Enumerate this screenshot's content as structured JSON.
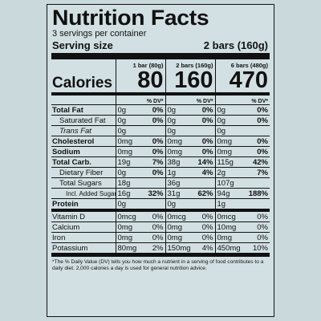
{
  "title": "Nutrition Facts",
  "servings_per_container": "3 servings per container",
  "serving_size_label": "Serving size",
  "serving_size_value": "2 bars (160g)",
  "columns": [
    "1 bar (80g)",
    "2 bars (160g)",
    "6 bars (480g)"
  ],
  "calories_label": "Calories",
  "calories": [
    "80",
    "160",
    "470"
  ],
  "dv_label": "% DV*",
  "nutrients": [
    {
      "name": "Total Fat",
      "style": "bold",
      "vals": [
        [
          "0g",
          "0%"
        ],
        [
          "0g",
          "0%"
        ],
        [
          "0g",
          "0%"
        ]
      ]
    },
    {
      "name": "Saturated Fat",
      "style": "ind",
      "vals": [
        [
          "0g",
          "0%"
        ],
        [
          "0g",
          "0%"
        ],
        [
          "0g",
          "0%"
        ]
      ]
    },
    {
      "name": "Trans Fat",
      "style": "ind-it",
      "vals": [
        [
          "0g",
          ""
        ],
        [
          "0g",
          ""
        ],
        [
          "0g",
          ""
        ]
      ]
    },
    {
      "name": "Cholesterol",
      "style": "bold",
      "vals": [
        [
          "0mg",
          "0%"
        ],
        [
          "0mg",
          "0%"
        ],
        [
          "0mg",
          "0%"
        ]
      ]
    },
    {
      "name": "Sodium",
      "style": "bold",
      "vals": [
        [
          "0mg",
          "0%"
        ],
        [
          "0mg",
          "0%"
        ],
        [
          "0mg",
          "0%"
        ]
      ]
    },
    {
      "name": "Total Carb.",
      "style": "bold",
      "vals": [
        [
          "19g",
          "7%"
        ],
        [
          "38g",
          "14%"
        ],
        [
          "115g",
          "42%"
        ]
      ]
    },
    {
      "name": "Dietary Fiber",
      "style": "ind",
      "vals": [
        [
          "0g",
          "0%"
        ],
        [
          "1g",
          "4%"
        ],
        [
          "2g",
          "7%"
        ]
      ]
    },
    {
      "name": "Total Sugars",
      "style": "ind",
      "vals": [
        [
          "18g",
          ""
        ],
        [
          "36g",
          ""
        ],
        [
          "107g",
          ""
        ]
      ]
    },
    {
      "name": "Incl. Added Sugars",
      "style": "ind2",
      "vals": [
        [
          "16g",
          "32%"
        ],
        [
          "31g",
          "62%"
        ],
        [
          "94g",
          "188%"
        ]
      ]
    },
    {
      "name": "Protein",
      "style": "bold-thick",
      "vals": [
        [
          "0g",
          ""
        ],
        [
          "0g",
          ""
        ],
        [
          "1g",
          ""
        ]
      ]
    }
  ],
  "vitamins": [
    {
      "name": "Vitamin D",
      "vals": [
        [
          "0mcg",
          "0%"
        ],
        [
          "0mcg",
          "0%"
        ],
        [
          "0mcg",
          "0%"
        ]
      ]
    },
    {
      "name": "Calcium",
      "vals": [
        [
          "0mg",
          "0%"
        ],
        [
          "0mg",
          "0%"
        ],
        [
          "10mg",
          "0%"
        ]
      ]
    },
    {
      "name": "Iron",
      "vals": [
        [
          "0mg",
          "0%"
        ],
        [
          "0mg",
          "0%"
        ],
        [
          "0mg",
          "0%"
        ]
      ]
    },
    {
      "name": "Potassium",
      "vals": [
        [
          "80mg",
          "2%"
        ],
        [
          "150mg",
          "4%"
        ],
        [
          "450mg",
          "10%"
        ]
      ]
    }
  ],
  "footnote": "*The % Daily Value (DV) tells you how much a nutrient in a serving of food contributes to a daily diet. 2,000 calories a day is used for general nutrition advice."
}
